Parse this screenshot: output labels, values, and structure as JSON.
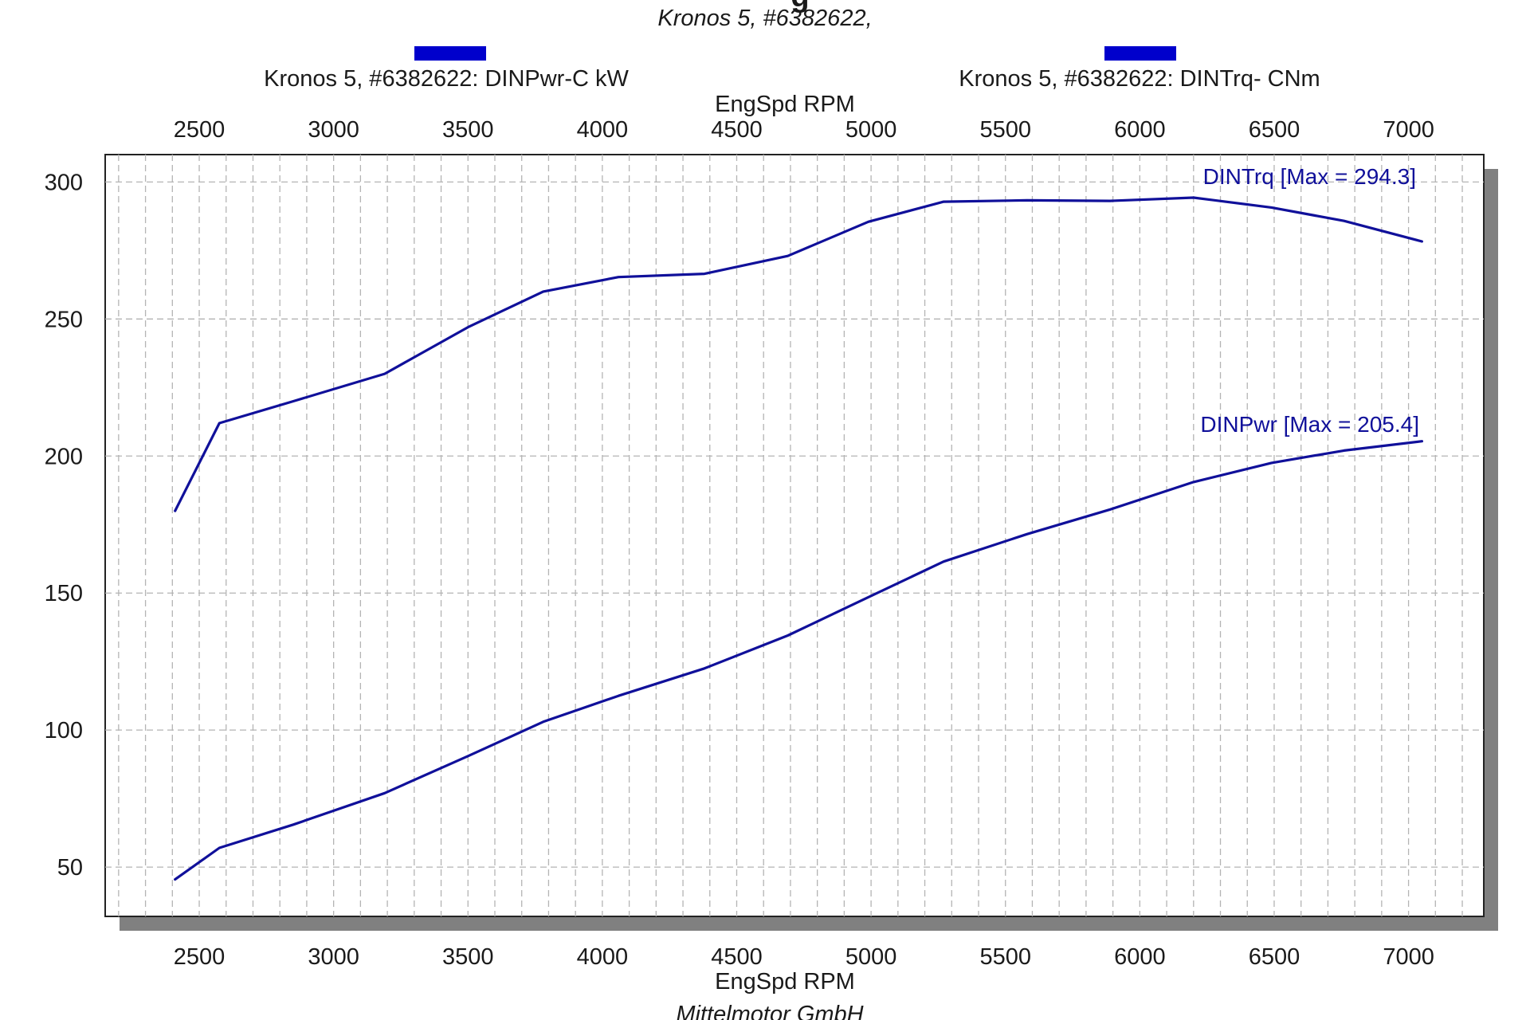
{
  "header": {
    "title_clipped": "g",
    "subtitle": "Kronos 5, #6382622,"
  },
  "legend": [
    {
      "label": "Kronos 5, #6382622: DINPwr-C kW",
      "color": "#0000cc"
    },
    {
      "label": "Kronos 5, #6382622: DINTrq- CNm",
      "color": "#0000cc"
    }
  ],
  "footer": "Mittelmotor GmbH",
  "colors": {
    "series": "#10109a",
    "legend_swatch": "#0000cc",
    "frame": "#222222",
    "shadow": "#808080",
    "grid": "#b4b4b4"
  },
  "chart_data": {
    "type": "line",
    "title": "",
    "xlabel": "EngSpd  RPM",
    "ylabel": "",
    "xlim": [
      2150,
      7280
    ],
    "ylim": [
      32,
      310
    ],
    "x_ticks": [
      2500,
      3000,
      3500,
      4000,
      4500,
      5000,
      5500,
      6000,
      6500,
      7000
    ],
    "x_tick_labels": [
      "2500",
      "3000",
      "3500",
      "4000",
      "4500",
      "5000",
      "5500",
      "6000",
      "6500",
      "7000"
    ],
    "y_ticks": [
      50,
      100,
      150,
      200,
      250,
      300
    ],
    "y_tick_labels": [
      "50",
      "100",
      "150",
      "200",
      "250",
      "300"
    ],
    "grid": true,
    "minor_x_step": 100,
    "legend_position": "top",
    "x_axis_top": true,
    "series": [
      {
        "name": "Kronos 5, #6382622: DINTrq- CNm",
        "annotation": "DINTrq [Max = 294.3]",
        "annotation_anchor": "end",
        "x": [
          2410,
          2575,
          2850,
          3190,
          3500,
          3780,
          4060,
          4380,
          4690,
          4990,
          5270,
          5580,
          5890,
          6200,
          6490,
          6760,
          7050
        ],
        "y": [
          180,
          212,
          220,
          230,
          247,
          260,
          265.3,
          266.5,
          273,
          285.5,
          292.8,
          293.3,
          293.1,
          294.3,
          290.7,
          285.8,
          278.3
        ]
      },
      {
        "name": "Kronos 5, #6382622: DINPwr-C kW",
        "annotation": "DINPwr [Max = 205.4]",
        "annotation_anchor": "end",
        "x": [
          2410,
          2575,
          2850,
          3190,
          3500,
          3780,
          4060,
          4380,
          4690,
          4990,
          5270,
          5580,
          5890,
          6200,
          6490,
          6760,
          7050
        ],
        "y": [
          45.5,
          57,
          65.5,
          77,
          90.5,
          103,
          112.5,
          122.5,
          134.5,
          148.5,
          161.5,
          171.5,
          180.5,
          190.5,
          197.5,
          202,
          205.4
        ]
      }
    ]
  }
}
